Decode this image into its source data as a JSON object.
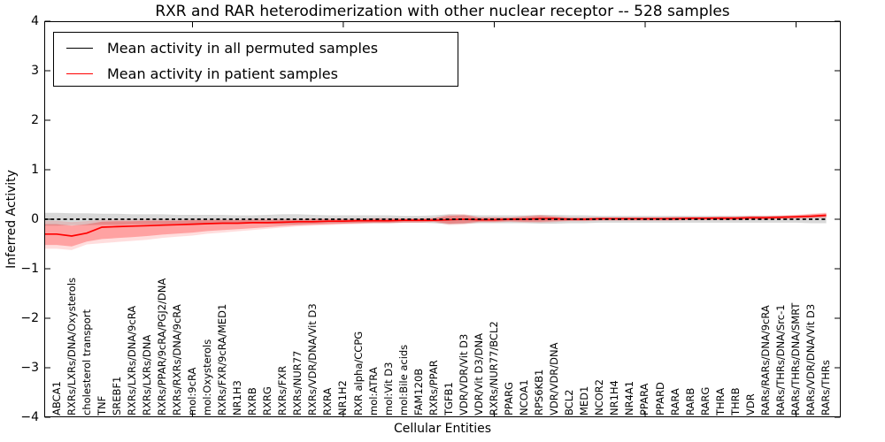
{
  "chart_data": {
    "type": "line",
    "title": "RXR and RAR heterodimerization with other nuclear receptor -- 528 samples",
    "xlabel": "Cellular Entities",
    "ylabel": "Inferred Activity",
    "ylim": [
      -4,
      4
    ],
    "ytick_labels": [
      "4",
      "3",
      "2",
      "1",
      "0",
      "−1",
      "−2",
      "−3",
      "−4"
    ],
    "grid": false,
    "legend_position": "upper left",
    "xtick_indices": [
      9,
      19,
      29,
      39,
      49
    ],
    "categories": [
      "ABCA1",
      "RXRs/LXRs/DNA/Oxysterols",
      "cholesterol transport",
      "TNF",
      "SREBF1",
      "RXRs/LXRs/DNA/9cRA",
      "RXRs/LXRs/DNA",
      "RXRs/PPAR/9cRA/PGJ2/DNA",
      "RXRs/RXRs/DNA/9cRA",
      "mol:9cRA",
      "mol:Oxysterols",
      "RXRs/FXR/9cRA/MED1",
      "NR1H3",
      "RXRB",
      "RXRG",
      "RXRs/FXR",
      "RXRs/NUR77",
      "RXRs/VDR/DNA/Vit D3",
      "RXRA",
      "NR1H2",
      "RXR alpha/CCPG",
      "mol:ATRA",
      "mol:Vit D3",
      "mol:Bile acids",
      "FAM120B",
      "RXRs/PPAR",
      "TGFB1",
      "VDR/VDR/Vit D3",
      "VDR/Vit D3/DNA",
      "RXRs/NUR77/BCL2",
      "PPARG",
      "NCOA1",
      "RPS6KB1",
      "VDR/VDR/DNA",
      "BCL2",
      "MED1",
      "NCOR2",
      "NR1H4",
      "NR4A1",
      "PPARA",
      "PPARD",
      "RARA",
      "RARB",
      "RARG",
      "THRA",
      "THRB",
      "VDR",
      "RARs/RARs/DNA/9cRA",
      "RARs/THRs/DNA/Src-1",
      "RARs/THRs/DNA/SMRT",
      "RARs/VDR/DNA/Vit D3",
      "RARs/THRs"
    ],
    "series": [
      {
        "name": "Mean activity in all permuted samples",
        "color": "#000000",
        "style": "dashed",
        "band_color": "#999999",
        "band_opacity": 0.38,
        "values": [
          0,
          0,
          0,
          0,
          0,
          0,
          0,
          0,
          0,
          0,
          0,
          0,
          0,
          0,
          0,
          0,
          0,
          0,
          0,
          0,
          0,
          0,
          0,
          0,
          0,
          0,
          0,
          0,
          0,
          0,
          0,
          0,
          0,
          0,
          0,
          0,
          0,
          0,
          0,
          0,
          0,
          0,
          0,
          0,
          0,
          0,
          0,
          0,
          0,
          0,
          0,
          0
        ],
        "band_hi": [
          0.13,
          0.12,
          0.12,
          0.11,
          0.11,
          0.1,
          0.1,
          0.1,
          0.09,
          0.09,
          0.09,
          0.09,
          0.08,
          0.08,
          0.09,
          0.1,
          0.1,
          0.09,
          0.08,
          0.08,
          0.08,
          0.08,
          0.08,
          0.07,
          0.07,
          0.08,
          0.1,
          0.09,
          0.08,
          0.08,
          0.08,
          0.08,
          0.09,
          0.09,
          0.08,
          0.08,
          0.07,
          0.07,
          0.07,
          0.07,
          0.07,
          0.07,
          0.07,
          0.07,
          0.07,
          0.07,
          0.07,
          0.07,
          0.07,
          0.07,
          0.08,
          0.08
        ],
        "band_lo": [
          -0.13,
          -0.12,
          -0.12,
          -0.11,
          -0.11,
          -0.1,
          -0.1,
          -0.1,
          -0.09,
          -0.09,
          -0.09,
          -0.09,
          -0.08,
          -0.08,
          -0.09,
          -0.1,
          -0.1,
          -0.09,
          -0.08,
          -0.08,
          -0.08,
          -0.08,
          -0.08,
          -0.07,
          -0.07,
          -0.08,
          -0.1,
          -0.09,
          -0.08,
          -0.08,
          -0.08,
          -0.08,
          -0.09,
          -0.09,
          -0.08,
          -0.08,
          -0.07,
          -0.07,
          -0.07,
          -0.07,
          -0.07,
          -0.07,
          -0.07,
          -0.07,
          -0.07,
          -0.07,
          -0.07,
          -0.07,
          -0.07,
          -0.07,
          -0.08,
          -0.08
        ]
      },
      {
        "name": "Mean activity in patient samples",
        "color": "#ff0000",
        "style": "solid",
        "band_color": "#ff0000",
        "band_opacity": 0.27,
        "outer_band_scale": 1.35,
        "outer_band_opacity": 0.13,
        "values": [
          -0.3,
          -0.34,
          -0.28,
          -0.16,
          -0.15,
          -0.14,
          -0.13,
          -0.12,
          -0.11,
          -0.1,
          -0.09,
          -0.08,
          -0.08,
          -0.07,
          -0.07,
          -0.06,
          -0.05,
          -0.05,
          -0.04,
          -0.04,
          -0.03,
          -0.03,
          -0.03,
          -0.02,
          -0.02,
          -0.02,
          -0.01,
          0.0,
          -0.01,
          -0.01,
          0.0,
          0.0,
          0.01,
          0.01,
          0.0,
          0.0,
          0.01,
          0.01,
          0.01,
          0.01,
          0.01,
          0.01,
          0.02,
          0.02,
          0.02,
          0.02,
          0.03,
          0.03,
          0.04,
          0.05,
          0.06,
          0.08
        ],
        "band_hi": [
          -0.1,
          -0.13,
          -0.1,
          -0.05,
          -0.04,
          -0.04,
          -0.03,
          -0.03,
          -0.03,
          -0.02,
          -0.02,
          -0.02,
          -0.02,
          -0.01,
          -0.01,
          -0.01,
          -0.01,
          0.0,
          0.0,
          0.0,
          0.0,
          0.01,
          0.01,
          0.01,
          0.01,
          0.02,
          0.07,
          0.08,
          0.03,
          0.03,
          0.03,
          0.05,
          0.07,
          0.05,
          0.03,
          0.03,
          0.03,
          0.03,
          0.03,
          0.03,
          0.03,
          0.04,
          0.04,
          0.04,
          0.05,
          0.05,
          0.06,
          0.06,
          0.07,
          0.08,
          0.1,
          0.12
        ],
        "band_lo": [
          -0.52,
          -0.55,
          -0.45,
          -0.4,
          -0.38,
          -0.36,
          -0.34,
          -0.31,
          -0.29,
          -0.27,
          -0.24,
          -0.22,
          -0.2,
          -0.18,
          -0.16,
          -0.14,
          -0.12,
          -0.11,
          -0.1,
          -0.09,
          -0.08,
          -0.07,
          -0.07,
          -0.06,
          -0.06,
          -0.05,
          -0.09,
          -0.08,
          -0.05,
          -0.05,
          -0.04,
          -0.05,
          -0.05,
          -0.04,
          -0.03,
          -0.03,
          -0.02,
          -0.02,
          -0.02,
          -0.02,
          -0.02,
          -0.02,
          -0.01,
          -0.01,
          -0.01,
          -0.01,
          0.0,
          0.0,
          0.01,
          0.02,
          0.03,
          0.04
        ]
      }
    ]
  }
}
